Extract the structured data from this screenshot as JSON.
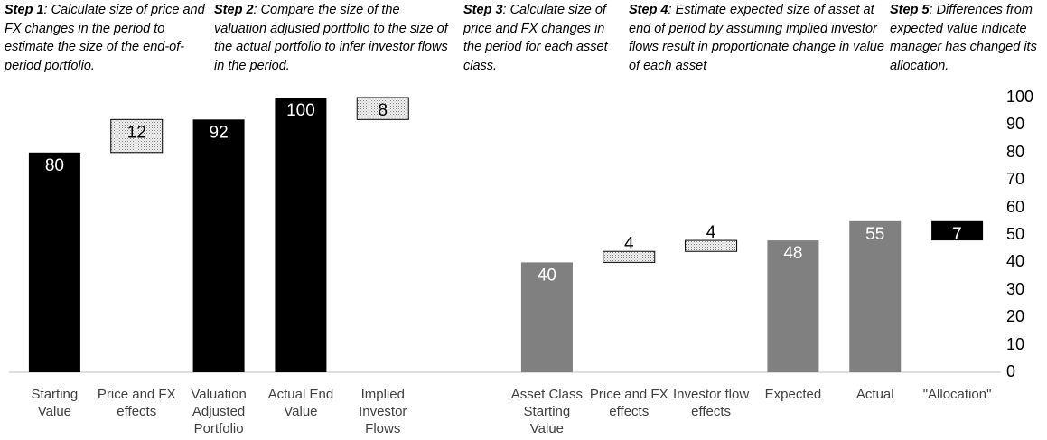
{
  "chart_data": {
    "type": "waterfall",
    "annotations": [
      {
        "label": "Step 1",
        "text": ": Calculate size of price and FX changes in the period to estimate the size of the end-of-period portfolio."
      },
      {
        "label": "Step 2",
        "text": ": Compare the size of the valuation adjusted portfolio to the size of the actual portfolio to infer investor flows in the period."
      },
      {
        "label": "Step 3",
        "text": ": Calculate size of price and FX changes in the period for each asset class."
      },
      {
        "label": "Step 4",
        "text": ":  Estimate expected size of asset at end of period by assuming implied investor flows result in proportionate change in value of each asset"
      },
      {
        "label": "Step 5",
        "text": ": Differences from expected value indicate manager has changed its allocation."
      }
    ],
    "categories": [
      "Starting Value",
      "Price and FX effects",
      "Valuation Adjusted Portfolio",
      "Actual End Value",
      "Implied Investor Flows",
      null,
      "Asset Class Starting Value",
      "Price and FX effects",
      "Investor flow effects",
      "Expected",
      "Actual",
      "\"Allocation\""
    ],
    "values": [
      80,
      12,
      92,
      100,
      8,
      null,
      40,
      4,
      4,
      48,
      55,
      7
    ],
    "measures": [
      "total",
      "increase",
      "total",
      "total",
      "difference",
      null,
      "total",
      "increase",
      "increase",
      "total",
      "total",
      "difference"
    ],
    "fills": [
      "#000000",
      "hatch",
      "#000000",
      "#000000",
      "hatch",
      null,
      "#808080",
      "hatch",
      "hatch",
      "#808080",
      "#808080",
      "#000000"
    ],
    "ylim": [
      0,
      100
    ],
    "yticks": [
      0,
      10,
      20,
      30,
      40,
      50,
      60,
      70,
      80,
      90,
      100
    ],
    "y_axis_side": "right",
    "grid": false
  }
}
